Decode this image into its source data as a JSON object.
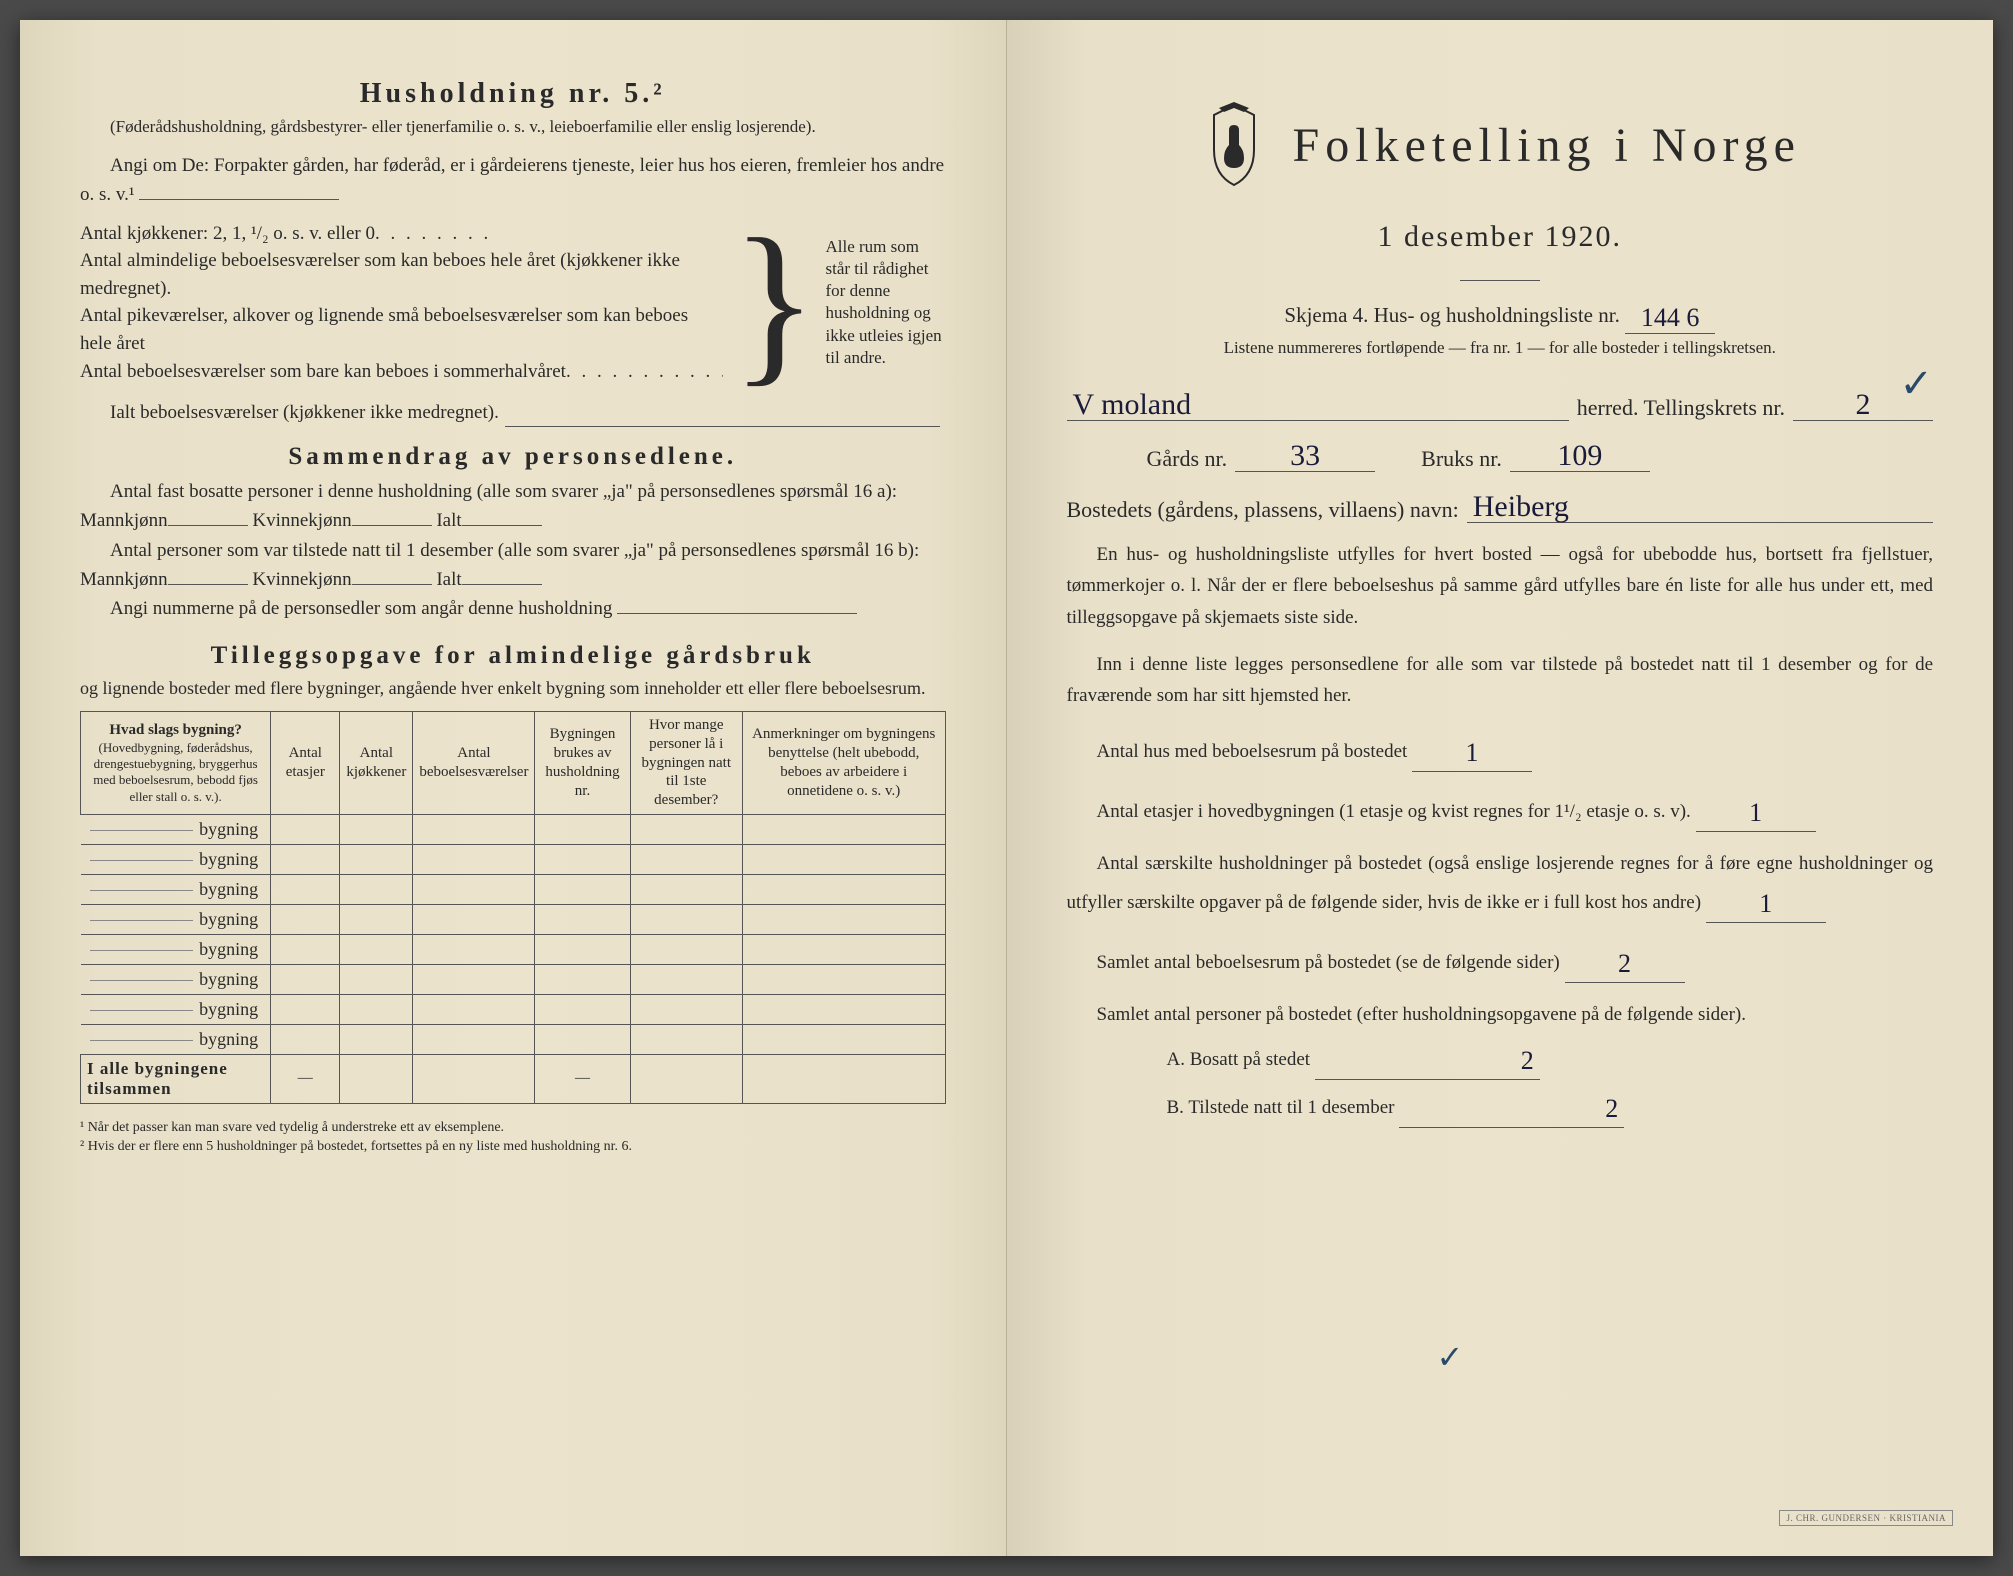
{
  "left": {
    "household_section": {
      "title": "Husholdning nr. 5.²",
      "subtitle": "(Føderådshusholdning, gårdsbestyrer- eller tjenerfamilie o. s. v., leieboerfamilie eller enslig losjerende).",
      "instructions": "Angi om De: Forpakter gården, har føderåd, er i gårdeierens tjeneste, leier hus hos eieren, fremleier hos andre o. s. v.¹"
    },
    "kitchen_rows": [
      "Antal kjøkkener: 2, 1, ¹/₂ o. s. v. eller 0",
      "Antal almindelige beboelsesværelser som kan beboes hele året (kjøkkener ikke medregnet).",
      "Antal pikeværelser, alkover og lignende små beboelsesværelser som kan beboes hele året",
      "Antal beboelsesværelser som bare kan beboes i sommerhalvåret"
    ],
    "brace_note": "Alle rum som står til rådighet for denne husholdning og ikke utleies igjen til andre.",
    "ialt_row": "Ialt beboelsesværelser (kjøkkener ikke medregnet).",
    "summary_title": "Sammendrag av personsedlene.",
    "summary_p1": "Antal fast bosatte personer i denne husholdning (alle som svarer „ja\" på personsedlenes spørsmål 16 a): Mannkjønn",
    "summary_p1_k": "Kvinnekjønn",
    "summary_p1_i": "Ialt",
    "summary_p2": "Antal personer som var tilstede natt til 1 desember (alle som svarer „ja\" på personsedlenes spørsmål 16 b): Mannkjønn",
    "summary_p3": "Angi nummerne på de personsedler som angår denne husholdning",
    "tillegg_title": "Tilleggsopgave for almindelige gårdsbruk",
    "tillegg_intro": "og lignende bosteder med flere bygninger, angående hver enkelt bygning som inneholder ett eller flere beboelsesrum.",
    "table": {
      "headers": [
        {
          "main": "Hvad slags bygning?",
          "sub": "(Hovedbygning, føderådshus, drengestuebygning, bryggerhus med beboelsesrum, bebodd fjøs eller stall o. s. v.)."
        },
        {
          "main": "Antal etasjer"
        },
        {
          "main": "Antal kjøkkener"
        },
        {
          "main": "Antal beboelsesværelser"
        },
        {
          "main": "Bygningen brukes av husholdning nr."
        },
        {
          "main": "Hvor mange personer lå i bygningen natt til 1ste desember?"
        },
        {
          "main": "Anmerkninger om bygningens benyttelse (helt ubebodd, beboes av arbeidere i onnetidene o. s. v.)"
        }
      ],
      "row_label": "bygning",
      "row_count": 8,
      "sum_label": "I alle bygningene tilsammen",
      "dash": "—"
    },
    "footnotes": [
      "¹ Når det passer kan man svare ved tydelig å understreke ett av eksemplene.",
      "² Hvis der er flere enn 5 husholdninger på bostedet, fortsettes på en ny liste med husholdning nr. 6."
    ]
  },
  "right": {
    "title": "Folketelling i Norge",
    "date": "1 desember 1920.",
    "skjema_line": "Skjema 4.   Hus- og husholdningsliste nr.",
    "skjema_value": "144  6",
    "skjema_sub": "Listene nummereres fortløpende — fra nr. 1 — for alle bosteder i tellingskretsen.",
    "herred_label": "herred.   Tellingskrets nr.",
    "herred_value": "V moland",
    "krets_value": "2",
    "gard_label": "Gårds nr.",
    "gard_value": "33",
    "bruk_label": "Bruks nr.",
    "bruk_value": "109",
    "bosted_label": "Bostedets (gårdens, plassens, villaens) navn:",
    "bosted_value": "Heiberg",
    "para1": "En hus- og husholdningsliste utfylles for hvert bosted — også for ubebodde hus, bortsett fra fjellstuer, tømmerkojer o. l.  Når der er flere beboelseshus på samme gård utfylles bare én liste for alle hus under ett, med tilleggsopgave på skjemaets siste side.",
    "para2": "Inn i denne liste legges personsedlene for alle som var tilstede på bostedet natt til 1 desember og for de fraværende som har sitt hjemsted her.",
    "q1_label": "Antal hus med beboelsesrum på bostedet",
    "q1_value": "1",
    "q2_label": "Antal etasjer i hovedbygningen (1 etasje og kvist regnes for 1¹/₂ etasje o. s. v).",
    "q2_value": "1",
    "q3_label": "Antal særskilte husholdninger på bostedet (også enslige losjerende regnes for å føre egne husholdninger og utfyller særskilte opgaver på de følgende sider, hvis de ikke er i full kost hos andre)",
    "q3_value": "1",
    "q4_label": "Samlet antal beboelsesrum på bostedet (se de følgende sider)",
    "q4_value": "2",
    "q5_label": "Samlet antal personer på bostedet (efter husholdningsopgavene på de følgende sider).",
    "q5a_label": "A.  Bosatt på stedet",
    "q5a_value": "2",
    "q5b_label": "B.  Tilstede natt til 1 desember",
    "q5b_value": "2",
    "stamp": "J. CHR. GUNDERSEN · KRISTIANIA"
  },
  "colors": {
    "paper": "#e8e0c8",
    "ink": "#2a2a2a",
    "pen": "#1a1a3a"
  }
}
